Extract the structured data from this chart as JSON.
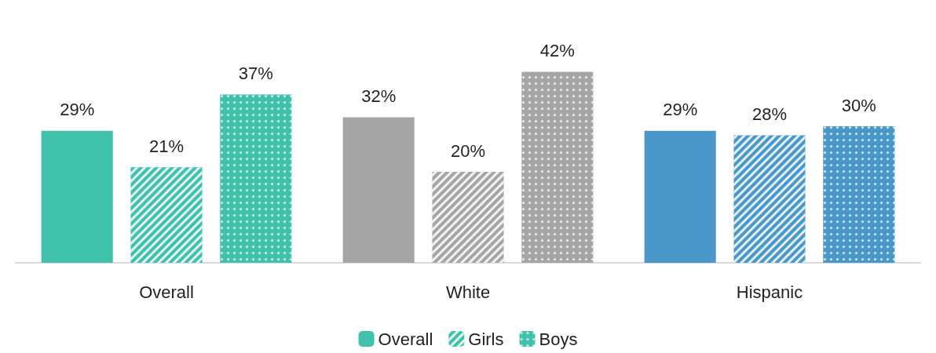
{
  "chart_data": {
    "type": "bar",
    "categories": [
      "Overall",
      "White",
      "Hispanic"
    ],
    "series": [
      {
        "name": "Overall",
        "color": "#40c1ac",
        "colors": [
          "#40c1ac",
          "#a5a5a5",
          "#4a98c9"
        ],
        "values": [
          29,
          32,
          29
        ],
        "value_labels": [
          "29%",
          "32%",
          "29%"
        ]
      },
      {
        "name": "Girls",
        "color": "#40c1ac",
        "colors": [
          "#40c1ac",
          "#a5a5a5",
          "#4a98c9"
        ],
        "values": [
          21,
          20,
          28
        ],
        "value_labels": [
          "21%",
          "20%",
          "28%"
        ]
      },
      {
        "name": "Boys",
        "color": "#40c1ac",
        "colors": [
          "#40c1ac",
          "#a5a5a5",
          "#4a98c9"
        ],
        "values": [
          37,
          42,
          30
        ],
        "value_labels": [
          "37%",
          "42%",
          "30%"
        ]
      }
    ],
    "legend": "bottom"
  }
}
